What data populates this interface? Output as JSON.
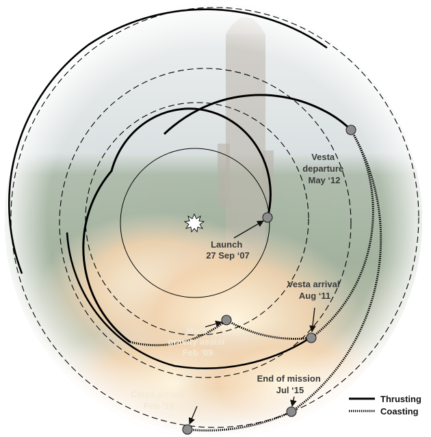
{
  "background": {
    "description_icon": "rocket-launch-photo",
    "colors": {
      "sky": "#cfd8d8",
      "trees": "#8fa18a",
      "rocket": "#c9c5bd",
      "exhaust": "#f0c89a",
      "fire": "#f7e6b0"
    }
  },
  "events": {
    "launch": {
      "line1": "Launch",
      "line2": "27 Sep ‘07"
    },
    "mars": {
      "line1": "Mars",
      "line2": "gravity assist",
      "line3": "Feb ‘09"
    },
    "vesta_arrival": {
      "line1": "Vesta arrival",
      "line2": "Aug ‘11"
    },
    "vesta_departure": {
      "line1": "Vesta",
      "line2": "departure",
      "line3": "May ‘12"
    },
    "end_of_mission": {
      "line1": "End of mission",
      "line2": "Jul ‘15"
    },
    "ceres_arrival": {
      "line1": "Ceres arrival",
      "line2": "Feb ‘15"
    }
  },
  "legend": {
    "thrusting": "Thrusting",
    "coasting": "Coasting"
  },
  "colors": {
    "orbit_line": "#000000",
    "event_marker": "#8c8c8c",
    "label_dark": "#3a3a3a",
    "label_light": "#f2ead8",
    "sun": "#ffffff"
  },
  "icons": {
    "sun": "sun-icon",
    "event": "event-marker-icon"
  }
}
